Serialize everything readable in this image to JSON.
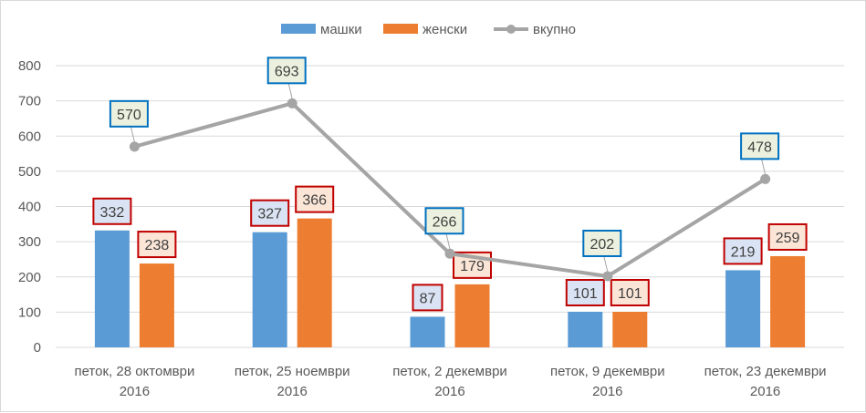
{
  "chart_data": {
    "type": "bar",
    "categories": [
      [
        "петок, 28 октомври",
        "2016"
      ],
      [
        "петок, 25 ноември",
        "2016"
      ],
      [
        "петок, 2 декември",
        "2016"
      ],
      [
        "петок, 9 декември",
        "2016"
      ],
      [
        "петок, 23 декември",
        "2016"
      ]
    ],
    "ylim": [
      0,
      800
    ],
    "yticks": [
      0,
      100,
      200,
      300,
      400,
      500,
      600,
      700,
      800
    ],
    "grid": true,
    "legend_position": "top",
    "series": [
      {
        "name": "машки",
        "kind": "bar",
        "color": "#5b9bd5",
        "label_box_color": "#c00000",
        "values": [
          332,
          327,
          87,
          101,
          219
        ]
      },
      {
        "name": "женски",
        "kind": "bar",
        "color": "#ed7d31",
        "label_box_color": "#c00000",
        "values": [
          238,
          366,
          179,
          101,
          259
        ]
      },
      {
        "name": "вкупно",
        "kind": "line",
        "color": "#a5a5a5",
        "label_box_color": "#0070c0",
        "values": [
          570,
          693,
          266,
          202,
          478
        ]
      }
    ]
  }
}
